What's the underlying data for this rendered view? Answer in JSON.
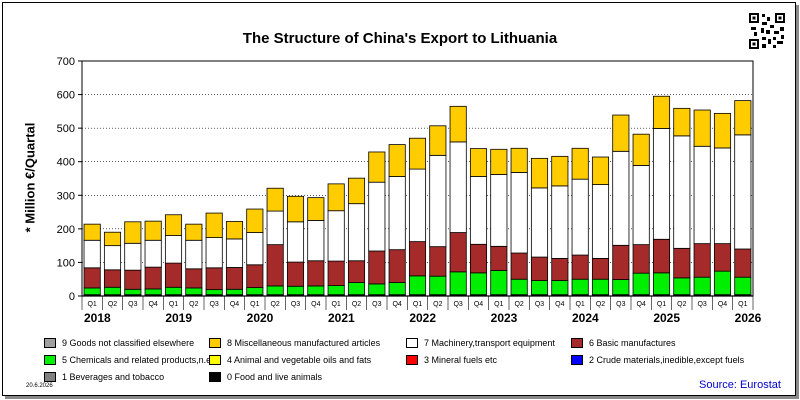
{
  "title": "The Structure of China's Export to Lithuania",
  "date": "20.6.2026",
  "source": "Source: Eurostat",
  "chart_data": {
    "type": "bar",
    "stacked": true,
    "title": "The Structure of China's Export to Lithuania",
    "ylabel": "* Million €/Quartal",
    "ylim": [
      0,
      700
    ],
    "yticks": [
      0,
      100,
      200,
      300,
      400,
      500,
      600,
      700
    ],
    "grid": true,
    "categories": [
      "Q1",
      "Q2",
      "Q3",
      "Q4",
      "Q1",
      "Q2",
      "Q3",
      "Q4",
      "Q1",
      "Q2",
      "Q3",
      "Q4",
      "Q1",
      "Q2",
      "Q3",
      "Q4",
      "Q1",
      "Q2",
      "Q3",
      "Q4",
      "Q1",
      "Q2",
      "Q3",
      "Q4",
      "Q1",
      "Q2",
      "Q3",
      "Q4",
      "Q1",
      "Q2",
      "Q3",
      "Q4",
      "Q1"
    ],
    "years": [
      {
        "label": "2018",
        "start": 0
      },
      {
        "label": "2019",
        "start": 4
      },
      {
        "label": "2020",
        "start": 8
      },
      {
        "label": "2021",
        "start": 12
      },
      {
        "label": "2022",
        "start": 16
      },
      {
        "label": "2023",
        "start": 20
      },
      {
        "label": "2024",
        "start": 24
      },
      {
        "label": "2025",
        "start": 28
      },
      {
        "label": "2026",
        "start": 32
      }
    ],
    "series": [
      {
        "name": "0 Food and live animals",
        "color": "#000000",
        "values": [
          2,
          2,
          2,
          2,
          2,
          2,
          2,
          2,
          2,
          2,
          2,
          2,
          2,
          2,
          2,
          2,
          2,
          2,
          2,
          2,
          2,
          2,
          2,
          2,
          2,
          2,
          2,
          2,
          2,
          2,
          2,
          2,
          2
        ]
      },
      {
        "name": "1 Beverages and tobacco",
        "color": "#808080",
        "values": [
          0,
          0,
          0,
          0,
          0,
          0,
          0,
          0,
          0,
          0,
          0,
          0,
          0,
          0,
          0,
          0,
          0,
          0,
          0,
          0,
          0,
          0,
          0,
          0,
          0,
          0,
          0,
          0,
          0,
          0,
          0,
          0,
          0
        ]
      },
      {
        "name": "2 Crude materials,inedible,except fuels",
        "color": "#0000ff",
        "values": [
          2,
          2,
          2,
          2,
          2,
          2,
          2,
          2,
          2,
          2,
          2,
          2,
          2,
          2,
          2,
          2,
          2,
          2,
          2,
          2,
          2,
          2,
          2,
          2,
          2,
          2,
          2,
          2,
          2,
          2,
          2,
          2,
          2
        ]
      },
      {
        "name": "3 Mineral fuels etc",
        "color": "#ff0000",
        "values": [
          0,
          0,
          0,
          0,
          0,
          0,
          0,
          0,
          0,
          0,
          0,
          0,
          0,
          0,
          0,
          0,
          0,
          0,
          0,
          0,
          0,
          0,
          0,
          0,
          0,
          0,
          0,
          0,
          0,
          0,
          0,
          0,
          0
        ]
      },
      {
        "name": "4 Animal and vegetable oils and fats",
        "color": "#ffff00",
        "values": [
          0,
          0,
          0,
          0,
          0,
          0,
          0,
          0,
          0,
          0,
          0,
          0,
          0,
          0,
          0,
          0,
          0,
          0,
          0,
          0,
          0,
          0,
          0,
          0,
          0,
          0,
          0,
          0,
          0,
          0,
          0,
          0,
          0
        ]
      },
      {
        "name": "5 Chemicals and related products,n.e.s.",
        "color": "#00ee00",
        "values": [
          20,
          22,
          16,
          17,
          22,
          20,
          15,
          16,
          21,
          26,
          25,
          26,
          27,
          36,
          32,
          36,
          56,
          55,
          68,
          65,
          72,
          46,
          42,
          42,
          46,
          46,
          45,
          64,
          65,
          50,
          52,
          70,
          52
        ]
      },
      {
        "name": "6 Basic manufactures",
        "color": "#a52a2a",
        "values": [
          60,
          52,
          57,
          65,
          72,
          57,
          65,
          65,
          68,
          123,
          72,
          75,
          73,
          65,
          98,
          98,
          102,
          88,
          117,
          85,
          72,
          78,
          70,
          66,
          72,
          62,
          102,
          85,
          100,
          88,
          100,
          82,
          84
        ]
      },
      {
        "name": "7 Machinery,transport equipment",
        "color": "#ffffff",
        "values": [
          82,
          72,
          80,
          80,
          82,
          85,
          90,
          85,
          96,
          100,
          120,
          120,
          150,
          170,
          205,
          218,
          216,
          272,
          270,
          202,
          214,
          240,
          206,
          216,
          226,
          220,
          280,
          236,
          330,
          335,
          290,
          285,
          340
        ]
      },
      {
        "name": "8 Miscellaneous manufactured articles",
        "color": "#ffcc00",
        "values": [
          48,
          40,
          64,
          57,
          62,
          48,
          73,
          52,
          70,
          68,
          76,
          68,
          80,
          76,
          90,
          95,
          92,
          88,
          106,
          83,
          75,
          72,
          88,
          88,
          92,
          82,
          108,
          93,
          96,
          82,
          108,
          103,
          102
        ]
      },
      {
        "name": "9 Goods not classified elsewhere",
        "color": "#a0a0a0",
        "values": [
          0,
          0,
          0,
          0,
          0,
          0,
          0,
          0,
          0,
          0,
          0,
          0,
          0,
          0,
          0,
          0,
          0,
          0,
          0,
          0,
          0,
          0,
          0,
          0,
          0,
          0,
          0,
          0,
          0,
          0,
          0,
          0,
          0
        ]
      }
    ]
  },
  "legend": [
    {
      "label": "9 Goods not classified elsewhere",
      "color": "#a0a0a0"
    },
    {
      "label": "8 Miscellaneous manufactured articles",
      "color": "#ffcc00"
    },
    {
      "label": "7 Machinery,transport equipment",
      "color": "#ffffff"
    },
    {
      "label": "6 Basic manufactures",
      "color": "#a52a2a"
    },
    {
      "label": "5 Chemicals and related products,n.e.s.",
      "color": "#00ee00"
    },
    {
      "label": "4 Animal and vegetable oils and fats",
      "color": "#ffff00"
    },
    {
      "label": "3 Mineral fuels etc",
      "color": "#ff0000"
    },
    {
      "label": "2 Crude materials,inedible,except fuels",
      "color": "#0000ff"
    },
    {
      "label": "1 Beverages and tobacco",
      "color": "#808080"
    },
    {
      "label": "0 Food and live animals",
      "color": "#000000"
    }
  ]
}
